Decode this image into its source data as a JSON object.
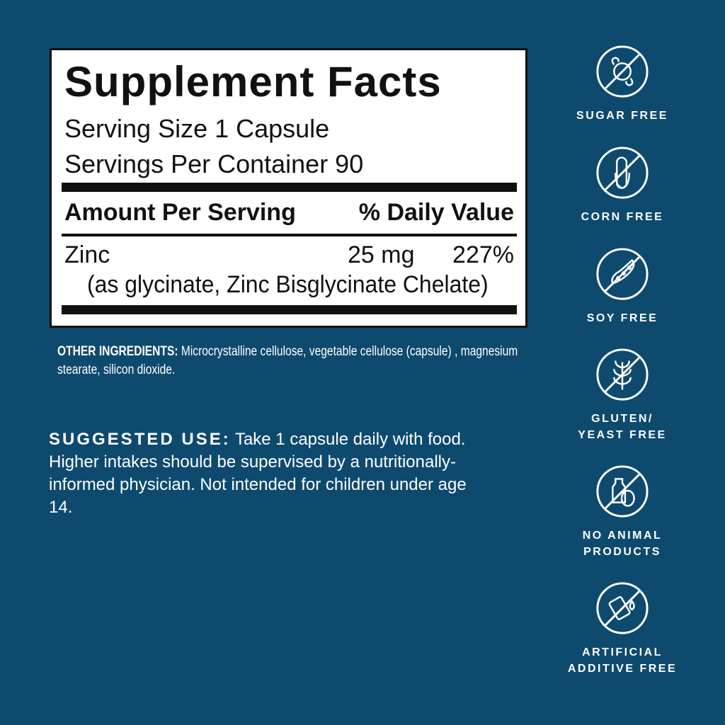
{
  "supplement_facts": {
    "title": "Supplement Facts",
    "serving_size": "Serving Size 1 Capsule",
    "servings_per_container": "Servings Per Container 90",
    "header_amount": "Amount Per Serving",
    "header_dv": "% Daily Value",
    "ingredients": [
      {
        "name": "Zinc",
        "amount": "25 mg",
        "dv": "227%",
        "detail": "(as glycinate, Zinc Bisglycinate Chelate)"
      }
    ]
  },
  "other_ingredients": {
    "label": "OTHER INGREDIENTS:",
    "text": " Microcrystalline cellulose, vegetable cellulose (capsule) , magnesium stearate, silicon dioxide."
  },
  "suggested_use": {
    "label": "SUGGESTED USE:",
    "text": " Take 1 capsule daily  with food. Higher intakes should be supervised by a nutritionally-informed physician. Not intended for children under age 14."
  },
  "badges": [
    {
      "icon": "candy-icon",
      "line1": "SUGAR FREE",
      "line2": ""
    },
    {
      "icon": "corn-icon",
      "line1": "CORN FREE",
      "line2": ""
    },
    {
      "icon": "soybean-icon",
      "line1": "SOY FREE",
      "line2": ""
    },
    {
      "icon": "wheat-icon",
      "line1": "GLUTEN/",
      "line2": "YEAST FREE"
    },
    {
      "icon": "milk-egg-icon",
      "line1": "NO ANIMAL",
      "line2": "PRODUCTS"
    },
    {
      "icon": "additive-drop-icon",
      "line1": "ARTIFICIAL",
      "line2": "ADDITIVE FREE"
    }
  ],
  "colors": {
    "background": "#0e4a6e",
    "panel": "#ffffff",
    "text": "#111111"
  }
}
